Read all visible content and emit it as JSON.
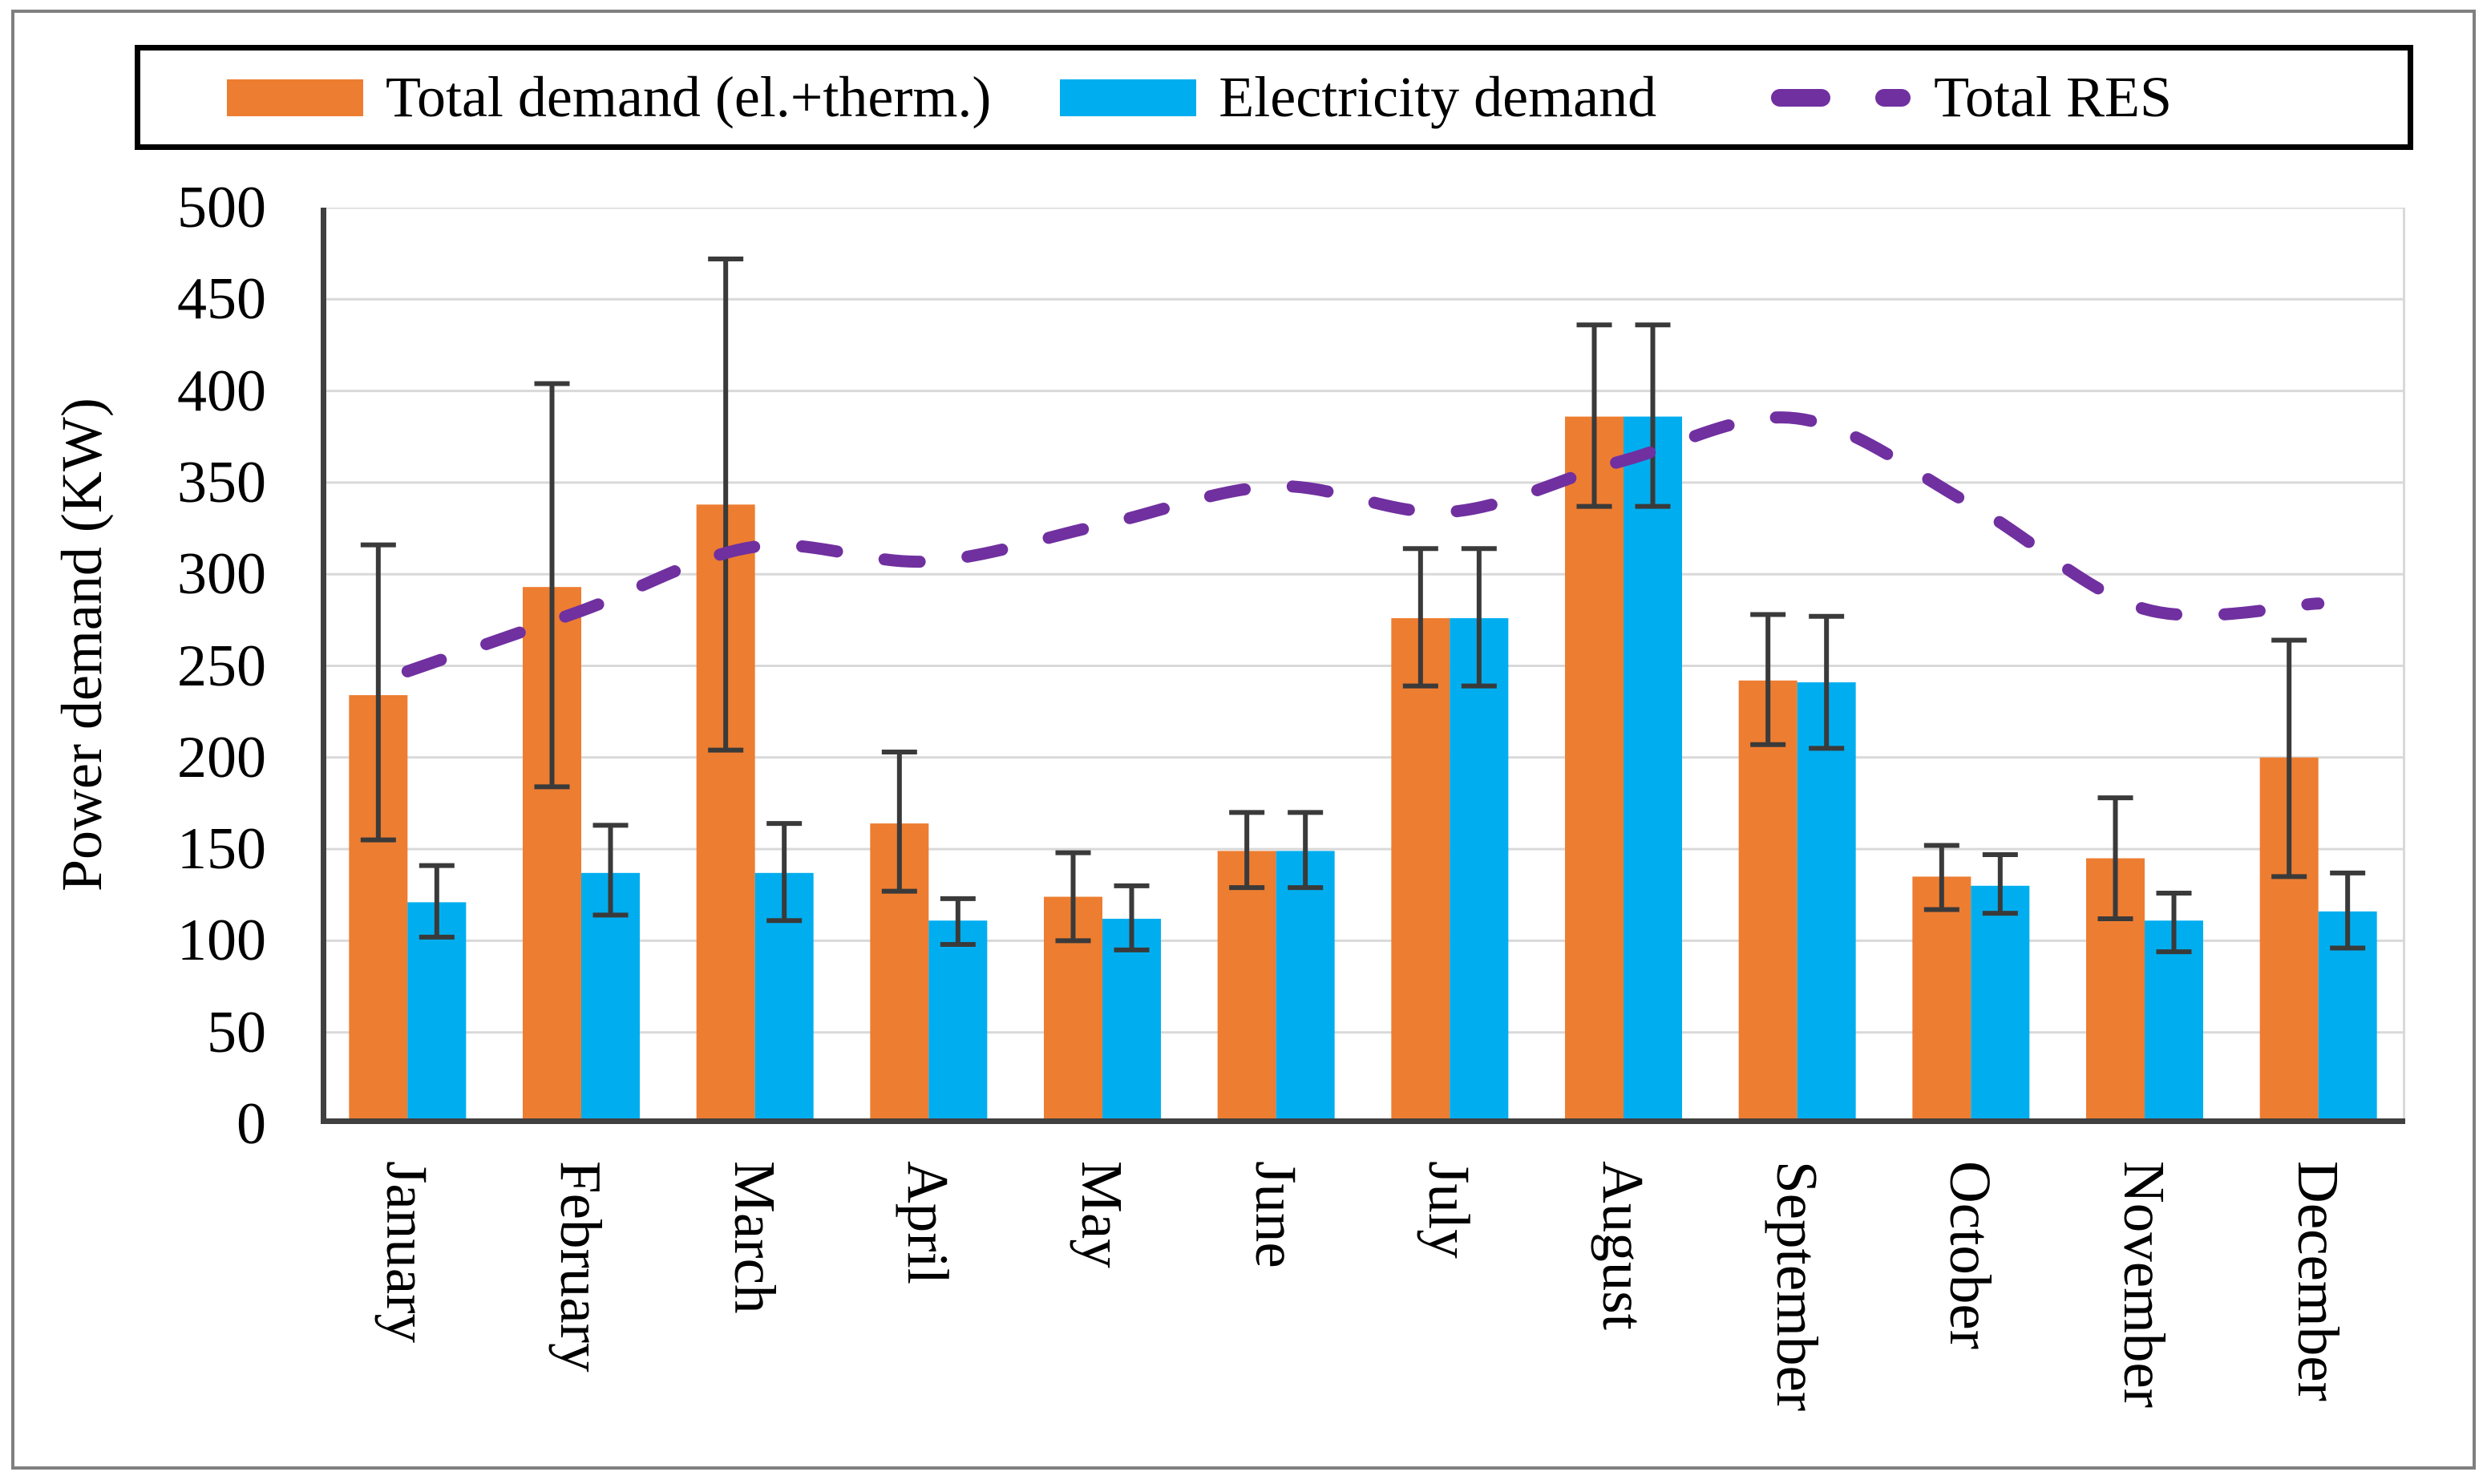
{
  "chart_data": {
    "type": "bar",
    "title": "",
    "categories": [
      "January",
      "February",
      "March",
      "April",
      "May",
      "June",
      "July",
      "August",
      "September",
      "October",
      "November",
      "December"
    ],
    "series": [
      {
        "name": "Total demand (el.+therm.)",
        "type": "bar",
        "color": "#ED7D31",
        "values": [
          234,
          293,
          338,
          164,
          124,
          149,
          276,
          386,
          242,
          135,
          145,
          200
        ],
        "error_low": [
          155,
          184,
          204,
          127,
          100,
          129,
          239,
          337,
          207,
          117,
          112,
          135
        ],
        "error_high": [
          316,
          404,
          472,
          203,
          148,
          170,
          314,
          436,
          278,
          152,
          178,
          264
        ]
      },
      {
        "name": "Electricity demand",
        "type": "bar",
        "color": "#00AEEF",
        "values": [
          121,
          137,
          137,
          111,
          112,
          149,
          276,
          386,
          241,
          130,
          111,
          116
        ],
        "error_low": [
          102,
          114,
          111,
          98,
          95,
          129,
          239,
          337,
          205,
          115,
          94,
          96
        ],
        "error_high": [
          141,
          163,
          164,
          123,
          130,
          170,
          314,
          436,
          277,
          147,
          126,
          137
        ]
      },
      {
        "name": "Total RES",
        "type": "line",
        "line_style": "dashed",
        "color": "#7030A0",
        "values": [
          247,
          280,
          315,
          307,
          327,
          348,
          334,
          362,
          385,
          338,
          281,
          284
        ]
      }
    ],
    "xlabel": "",
    "ylabel": "Power demand (KW)",
    "ylim": [
      0,
      500
    ],
    "ytick_step": 50,
    "yticks": [
      0,
      50,
      100,
      150,
      200,
      250,
      300,
      350,
      400,
      450,
      500
    ],
    "grid": true,
    "legend_position": "top",
    "error_bar_color": "#3A3A3A"
  },
  "colors": {
    "grid": "#D9D9D9",
    "axis": "#404040",
    "figure_border": "#808080",
    "legend_border": "#000000",
    "background": "#FFFFFF",
    "text": "#000000"
  }
}
